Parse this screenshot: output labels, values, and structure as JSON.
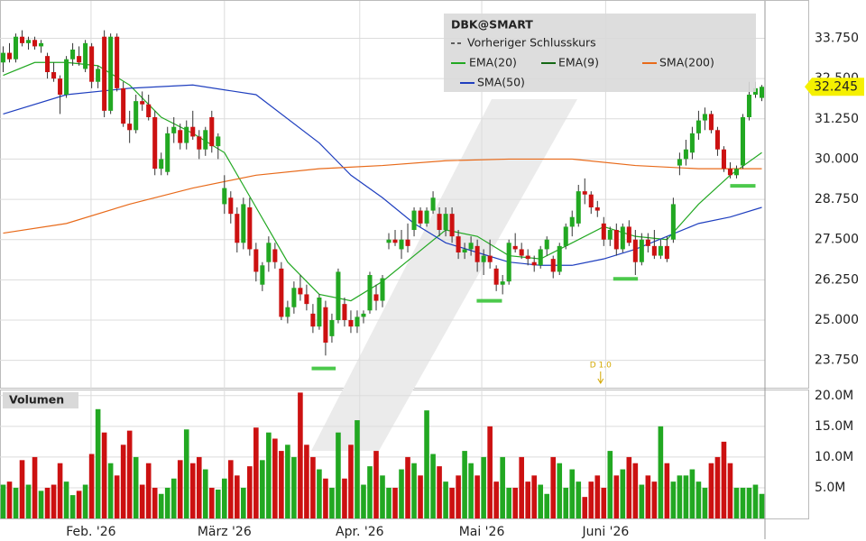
{
  "chart_data": {
    "type": "candlestick",
    "title": "DBK@SMART",
    "legend": [
      "Vorheriger Schlusskurs",
      "EMA(20)",
      "EMA(9)",
      "SMA(200)",
      "SMA(50)"
    ],
    "up_color": "#22a822",
    "down_color": "#cc1111",
    "ylim": [
      22.9,
      34.8
    ],
    "yticks": [
      {
        "value": 33.75,
        "label": "33.750"
      },
      {
        "value": 32.5,
        "label": "32.500"
      },
      {
        "value": 31.25,
        "label": "31.250"
      },
      {
        "value": 30,
        "label": "30.000"
      },
      {
        "value": 28.75,
        "label": "28.750"
      },
      {
        "value": 27.5,
        "label": "27.500"
      },
      {
        "value": 26.25,
        "label": "26.250"
      },
      {
        "value": 25,
        "label": "25.000"
      },
      {
        "value": 23.75,
        "label": "23.750"
      }
    ],
    "xlim": [
      -0.5,
      120.5
    ],
    "xticks": [
      {
        "value": 13.9,
        "label": "Feb. '26"
      },
      {
        "value": 35,
        "label": "März '26"
      },
      {
        "value": 56.4,
        "label": "Apr. '26"
      },
      {
        "value": 75.7,
        "label": "Mai '26"
      },
      {
        "value": 95.3,
        "label": "Juni '26"
      }
    ],
    "ohlc": [
      [
        33.0,
        33.5,
        32.7,
        33.3
      ],
      [
        33.3,
        33.6,
        33.0,
        33.1
      ],
      [
        33.1,
        33.9,
        33.0,
        33.8
      ],
      [
        33.8,
        34.0,
        33.5,
        33.6
      ],
      [
        33.6,
        33.8,
        33.4,
        33.7
      ],
      [
        33.7,
        33.8,
        33.4,
        33.5
      ],
      [
        33.5,
        33.7,
        33.3,
        33.6
      ],
      [
        33.2,
        33.3,
        32.5,
        32.7
      ],
      [
        32.7,
        33.0,
        32.4,
        32.5
      ],
      [
        32.5,
        32.6,
        31.4,
        32.0
      ],
      [
        32.0,
        33.2,
        31.9,
        33.1
      ],
      [
        33.1,
        33.6,
        32.9,
        33.4
      ],
      [
        33.2,
        33.5,
        32.9,
        33.0
      ],
      [
        32.8,
        33.7,
        32.7,
        33.6
      ],
      [
        33.5,
        33.6,
        32.2,
        32.4
      ],
      [
        32.4,
        32.9,
        32.2,
        32.8
      ],
      [
        33.8,
        34.0,
        31.3,
        31.5
      ],
      [
        31.5,
        33.9,
        31.4,
        33.8
      ],
      [
        33.8,
        33.9,
        32.1,
        32.2
      ],
      [
        32.2,
        32.4,
        31.0,
        31.1
      ],
      [
        31.1,
        31.5,
        30.5,
        30.9
      ],
      [
        30.9,
        32.0,
        30.8,
        31.8
      ],
      [
        31.8,
        32.1,
        31.5,
        31.7
      ],
      [
        31.7,
        32.0,
        31.2,
        31.3
      ],
      [
        31.3,
        31.5,
        29.5,
        29.7
      ],
      [
        29.7,
        30.2,
        29.5,
        30.0
      ],
      [
        29.6,
        31.0,
        29.5,
        30.8
      ],
      [
        30.8,
        31.3,
        30.5,
        31.0
      ],
      [
        30.9,
        31.1,
        30.3,
        30.5
      ],
      [
        30.5,
        31.2,
        30.3,
        31.0
      ],
      [
        31.0,
        31.5,
        30.6,
        30.7
      ],
      [
        30.7,
        30.9,
        30.0,
        30.3
      ],
      [
        30.3,
        31.0,
        30.1,
        30.9
      ],
      [
        31.3,
        31.5,
        30.2,
        30.4
      ],
      [
        30.4,
        30.8,
        30.0,
        30.7
      ],
      [
        28.6,
        29.5,
        28.3,
        29.1
      ],
      [
        28.8,
        29.0,
        28.0,
        28.3
      ],
      [
        28.3,
        28.5,
        27.1,
        27.4
      ],
      [
        27.4,
        28.8,
        27.2,
        28.6
      ],
      [
        28.5,
        28.8,
        27.0,
        27.2
      ],
      [
        27.2,
        27.4,
        26.2,
        26.5
      ],
      [
        26.1,
        26.8,
        25.9,
        26.7
      ],
      [
        26.8,
        27.6,
        26.5,
        27.4
      ],
      [
        27.2,
        27.4,
        26.6,
        26.8
      ],
      [
        26.6,
        26.8,
        25.0,
        25.1
      ],
      [
        25.1,
        25.6,
        24.9,
        25.4
      ],
      [
        25.4,
        26.2,
        25.2,
        26.0
      ],
      [
        26.0,
        26.4,
        25.6,
        25.8
      ],
      [
        25.8,
        26.1,
        25.3,
        25.5
      ],
      [
        25.2,
        25.5,
        24.6,
        24.8
      ],
      [
        24.8,
        25.8,
        24.7,
        25.7
      ],
      [
        25.4,
        25.6,
        23.9,
        24.3
      ],
      [
        24.5,
        25.2,
        24.3,
        25.0
      ],
      [
        25.0,
        26.6,
        24.9,
        26.5
      ],
      [
        25.5,
        25.7,
        24.8,
        25.0
      ],
      [
        25.0,
        25.3,
        24.6,
        24.8
      ],
      [
        24.8,
        25.3,
        24.6,
        25.1
      ],
      [
        25.1,
        25.3,
        24.9,
        25.2
      ],
      [
        25.3,
        26.5,
        25.2,
        26.4
      ],
      [
        25.8,
        26.1,
        25.3,
        25.6
      ],
      [
        25.6,
        26.4,
        25.4,
        26.3
      ],
      [
        27.4,
        27.7,
        27.2,
        27.5
      ],
      [
        27.5,
        27.8,
        27.3,
        27.4
      ],
      [
        27.2,
        27.8,
        26.9,
        27.5
      ],
      [
        27.5,
        28.0,
        27.1,
        27.3
      ],
      [
        27.8,
        28.5,
        27.6,
        28.4
      ],
      [
        28.4,
        28.5,
        27.9,
        28.0
      ],
      [
        28.0,
        28.5,
        27.9,
        28.4
      ],
      [
        28.4,
        29.0,
        28.3,
        28.8
      ],
      [
        28.3,
        28.5,
        27.6,
        27.8
      ],
      [
        27.8,
        28.5,
        27.6,
        28.3
      ],
      [
        28.3,
        28.5,
        27.4,
        27.6
      ],
      [
        27.6,
        27.8,
        26.9,
        27.1
      ],
      [
        27.1,
        27.4,
        26.9,
        27.2
      ],
      [
        27.2,
        27.6,
        27.0,
        27.4
      ],
      [
        27.3,
        27.5,
        26.5,
        26.8
      ],
      [
        26.8,
        27.2,
        26.4,
        27.0
      ],
      [
        27.0,
        27.5,
        26.6,
        26.8
      ],
      [
        26.6,
        26.7,
        25.9,
        26.1
      ],
      [
        26.1,
        26.4,
        25.8,
        26.2
      ],
      [
        26.2,
        27.5,
        26.1,
        27.4
      ],
      [
        27.3,
        27.7,
        27.1,
        27.2
      ],
      [
        27.2,
        27.4,
        26.9,
        27.0
      ],
      [
        27.0,
        27.2,
        26.7,
        26.9
      ],
      [
        26.8,
        27.0,
        26.5,
        26.7
      ],
      [
        26.7,
        27.3,
        26.6,
        27.2
      ],
      [
        27.2,
        27.6,
        27.0,
        27.5
      ],
      [
        26.9,
        27.0,
        26.3,
        26.5
      ],
      [
        26.5,
        27.4,
        26.4,
        27.3
      ],
      [
        27.3,
        28.0,
        27.2,
        27.9
      ],
      [
        27.9,
        28.4,
        27.6,
        28.2
      ],
      [
        28.0,
        29.2,
        27.9,
        29.0
      ],
      [
        29.0,
        29.4,
        28.6,
        28.9
      ],
      [
        28.9,
        29.0,
        28.3,
        28.5
      ],
      [
        28.5,
        28.7,
        28.2,
        28.4
      ],
      [
        28.0,
        28.2,
        27.3,
        27.5
      ],
      [
        27.5,
        27.9,
        27.3,
        27.8
      ],
      [
        27.8,
        28.0,
        27.0,
        27.2
      ],
      [
        27.2,
        28.0,
        27.1,
        27.9
      ],
      [
        27.9,
        28.1,
        27.3,
        27.4
      ],
      [
        27.5,
        27.8,
        26.4,
        26.8
      ],
      [
        26.8,
        27.7,
        26.7,
        27.5
      ],
      [
        27.5,
        27.7,
        27.1,
        27.3
      ],
      [
        27.3,
        27.8,
        26.9,
        27.0
      ],
      [
        27.0,
        27.5,
        26.9,
        27.3
      ],
      [
        27.3,
        27.6,
        26.8,
        26.9
      ],
      [
        27.5,
        28.8,
        27.4,
        28.6
      ],
      [
        29.8,
        30.2,
        29.5,
        30.0
      ],
      [
        30.0,
        30.6,
        29.8,
        30.3
      ],
      [
        30.2,
        31.0,
        30.0,
        30.8
      ],
      [
        30.8,
        31.5,
        30.6,
        31.2
      ],
      [
        31.2,
        31.6,
        30.9,
        31.4
      ],
      [
        31.4,
        31.5,
        30.8,
        30.9
      ],
      [
        30.9,
        31.0,
        30.1,
        30.3
      ],
      [
        30.3,
        30.4,
        29.6,
        29.7
      ],
      [
        29.7,
        29.9,
        29.4,
        29.5
      ],
      [
        29.5,
        29.8,
        29.4,
        29.7
      ],
      [
        29.8,
        31.4,
        29.7,
        31.3
      ],
      [
        31.3,
        32.4,
        31.2,
        32.0
      ],
      [
        32.0,
        32.4,
        31.9,
        32.2
      ],
      [
        31.9,
        32.3,
        31.8,
        32.245
      ]
    ],
    "lines": [
      {
        "name": "EMA(20)",
        "color": "#22a822",
        "x": [
          0,
          5,
          10,
          15,
          20,
          25,
          30,
          35,
          40,
          45,
          50,
          55,
          60,
          65,
          70,
          75,
          80,
          85,
          90,
          95,
          100,
          105,
          110,
          115,
          120
        ],
        "values": [
          32.6,
          33.0,
          33.0,
          32.9,
          32.3,
          31.3,
          30.8,
          30.2,
          28.5,
          26.8,
          25.8,
          25.6,
          26.2,
          27.0,
          27.8,
          27.6,
          27.0,
          26.9,
          27.4,
          27.9,
          27.6,
          27.5,
          28.6,
          29.5,
          30.2
        ]
      },
      {
        "name": "SMA(50)",
        "color": "#1f3fbf",
        "x": [
          0,
          10,
          20,
          30,
          40,
          50,
          55,
          60,
          65,
          70,
          75,
          80,
          85,
          90,
          95,
          100,
          105,
          110,
          115,
          120
        ],
        "values": [
          31.4,
          32.0,
          32.2,
          32.3,
          32.0,
          30.5,
          29.5,
          28.8,
          28.0,
          27.4,
          27.1,
          26.8,
          26.7,
          26.7,
          26.9,
          27.2,
          27.6,
          28.0,
          28.2,
          28.5
        ]
      },
      {
        "name": "SMA(200)",
        "color": "#e86a1a",
        "x": [
          0,
          10,
          20,
          30,
          40,
          50,
          60,
          70,
          80,
          90,
          100,
          110,
          120
        ],
        "values": [
          27.7,
          28.0,
          28.6,
          29.1,
          29.5,
          29.7,
          29.8,
          29.95,
          30.0,
          30.0,
          29.8,
          29.7,
          29.7
        ]
      }
    ],
    "support_levels": [
      {
        "x": [
          48.8,
          52.6
        ],
        "y": 23.5
      },
      {
        "x": [
          74.9,
          78.9
        ],
        "y": 25.6
      },
      {
        "x": [
          96.5,
          100.4
        ],
        "y": 26.28
      },
      {
        "x": [
          115,
          119
        ],
        "y": 29.17
      }
    ],
    "annotation": {
      "text": "D 1.0",
      "x": 94.5
    },
    "volume": {
      "title": "Volumen",
      "ylim": [
        0,
        21
      ],
      "yticks": [
        {
          "value": 20,
          "label": "20.0M"
        },
        {
          "value": 15,
          "label": "15.0M"
        },
        {
          "value": 10,
          "label": "10.0M"
        },
        {
          "value": 5,
          "label": "5.0M"
        }
      ],
      "values": [
        5.5,
        6,
        5,
        9.5,
        5.5,
        10,
        4.5,
        5,
        5.5,
        9,
        6,
        3.8,
        4.5,
        5.5,
        10.5,
        17.8,
        14,
        9,
        7,
        12,
        14.3,
        10,
        5.5,
        9,
        5,
        4,
        5,
        6.5,
        9.5,
        14.5,
        9,
        10,
        8,
        5,
        4.7,
        6.5,
        9.5,
        7,
        5,
        8.5,
        14.8,
        9.5,
        14,
        13,
        11,
        12,
        10,
        20.5,
        12,
        10,
        8,
        6.5,
        5,
        14,
        6.5,
        12,
        16,
        5.5,
        8.5,
        11,
        7,
        5,
        5,
        8,
        10,
        9,
        7,
        17.6,
        10.5,
        8.5,
        6,
        5,
        7,
        11,
        9,
        7,
        10,
        15,
        6,
        10,
        5,
        5,
        10,
        6,
        7,
        5.5,
        4,
        10,
        9,
        5,
        8,
        6,
        3.5,
        6,
        7,
        5,
        11,
        7,
        8,
        10,
        9,
        5.5,
        7,
        6,
        15,
        9,
        6,
        7,
        7,
        8,
        6,
        5,
        9,
        10,
        12.5,
        9,
        5,
        5,
        5,
        5.5,
        4
      ]
    }
  }
}
